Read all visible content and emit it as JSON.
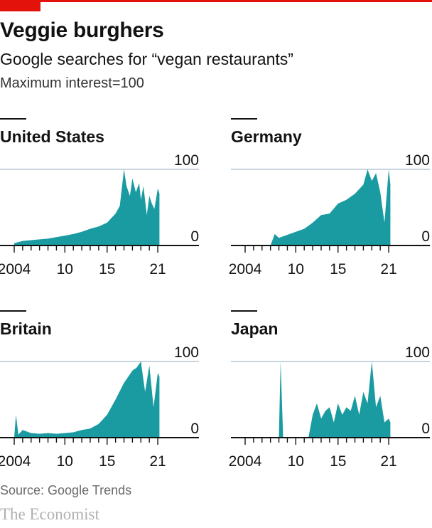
{
  "header": {
    "title": "Veggie burghers",
    "subtitle": "Google searches for “vegan restaurants”",
    "note": "Maximum interest=100"
  },
  "footer": {
    "source": "Source: Google Trends",
    "brand": "The Economist"
  },
  "colors": {
    "accent": "#e3120b",
    "series": "#1a9ba1",
    "gridline": "#b7c6d3",
    "axis": "#121212"
  },
  "chart_data": [
    {
      "type": "area",
      "title": "United States",
      "xlim": [
        2004,
        2021.5
      ],
      "ylim": [
        0,
        100
      ],
      "yticks": [
        "100",
        "0"
      ],
      "xtick_labels": [
        "2004",
        "10",
        "15",
        "21"
      ],
      "x": [
        2004,
        2005,
        2006,
        2007,
        2008,
        2009,
        2010,
        2011,
        2012,
        2013,
        2014,
        2015,
        2016,
        2016.5,
        2017,
        2017.3,
        2017.7,
        2018,
        2018.4,
        2018.8,
        2019,
        2019.3,
        2019.7,
        2020,
        2020.3,
        2020.6,
        2021,
        2021.2
      ],
      "values": [
        3,
        6,
        7,
        8,
        9,
        11,
        13,
        15,
        18,
        22,
        25,
        30,
        42,
        52,
        100,
        78,
        65,
        88,
        70,
        82,
        60,
        78,
        40,
        65,
        55,
        48,
        75,
        68
      ]
    },
    {
      "type": "area",
      "title": "Germany",
      "xlim": [
        2004,
        2021.5
      ],
      "ylim": [
        0,
        100
      ],
      "yticks": [
        "100",
        "0"
      ],
      "xtick_labels": [
        "2004",
        "10",
        "15",
        "21"
      ],
      "x": [
        2004,
        2005,
        2006,
        2007,
        2007.5,
        2008,
        2009,
        2010,
        2011,
        2012,
        2013,
        2014,
        2015,
        2016,
        2017,
        2018,
        2018.5,
        2019,
        2019.5,
        2020,
        2020.5,
        2021,
        2021.2
      ],
      "values": [
        0,
        0,
        0,
        0,
        15,
        10,
        14,
        18,
        22,
        30,
        40,
        42,
        55,
        60,
        68,
        80,
        100,
        85,
        95,
        70,
        30,
        100,
        80
      ]
    },
    {
      "type": "area",
      "title": "Britain",
      "xlim": [
        2004,
        2021.5
      ],
      "ylim": [
        0,
        100
      ],
      "yticks": [
        "100",
        "0"
      ],
      "xtick_labels": [
        "2004",
        "10",
        "15",
        "21"
      ],
      "x": [
        2004,
        2004.2,
        2004.5,
        2005,
        2006,
        2007,
        2008,
        2009,
        2010,
        2011,
        2012,
        2013,
        2014,
        2015,
        2016,
        2017,
        2017.5,
        2018,
        2018.5,
        2019,
        2019.5,
        2020,
        2020.5,
        2021,
        2021.2
      ],
      "values": [
        0,
        30,
        4,
        10,
        6,
        5,
        6,
        5,
        6,
        7,
        10,
        12,
        18,
        30,
        50,
        72,
        80,
        88,
        92,
        100,
        60,
        95,
        40,
        85,
        80
      ]
    },
    {
      "type": "area",
      "title": "Japan",
      "xlim": [
        2004,
        2021.5
      ],
      "ylim": [
        0,
        100
      ],
      "yticks": [
        "100",
        "0"
      ],
      "xtick_labels": [
        "2004",
        "10",
        "15",
        "21"
      ],
      "x": [
        2004,
        2007,
        2008,
        2008.2,
        2008.5,
        2011.5,
        2012,
        2012.5,
        2013,
        2013.5,
        2014,
        2014.5,
        2015,
        2015.5,
        2016,
        2016.5,
        2017,
        2017.5,
        2018,
        2018.5,
        2019,
        2019.5,
        2020,
        2020.5,
        2021,
        2021.2
      ],
      "values": [
        0,
        0,
        0,
        100,
        0,
        0,
        30,
        45,
        25,
        35,
        40,
        20,
        45,
        30,
        40,
        35,
        55,
        30,
        60,
        45,
        100,
        40,
        55,
        20,
        25,
        20
      ]
    }
  ]
}
